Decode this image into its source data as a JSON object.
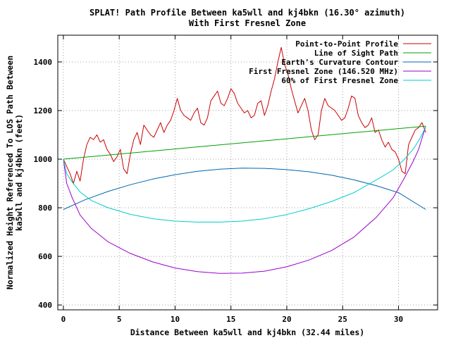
{
  "chart_data": {
    "type": "line",
    "title": "SPLAT! Path Profile Between ka5wll and kj4bkn (16.30° azimuth)",
    "subtitle": "With First Fresnel Zone",
    "xlabel": "Distance Between ka5wll and kj4bkn (32.44 miles)",
    "ylabel_line1": "Normalized Height Referenced To LOS Path Between",
    "ylabel_line2": "ka5wll and kj4bkn (feet)",
    "xlim": [
      -0.5,
      33.5
    ],
    "ylim": [
      380,
      1510
    ],
    "xticks": [
      0,
      5,
      10,
      15,
      20,
      25,
      30
    ],
    "yticks": [
      400,
      600,
      800,
      1000,
      1200,
      1400
    ],
    "grid": true,
    "legend_position": "top-right",
    "series": [
      {
        "name": "Point-to-Point Profile",
        "color": "#cc0000",
        "x": [
          0,
          0.3,
          0.6,
          0.9,
          1.2,
          1.5,
          1.8,
          2.1,
          2.4,
          2.7,
          3.0,
          3.3,
          3.6,
          3.9,
          4.2,
          4.5,
          4.8,
          5.1,
          5.4,
          5.7,
          6.0,
          6.3,
          6.6,
          6.9,
          7.2,
          7.5,
          7.8,
          8.1,
          8.4,
          8.7,
          9.0,
          9.3,
          9.6,
          9.9,
          10.2,
          10.5,
          10.8,
          11.1,
          11.4,
          11.7,
          12.0,
          12.3,
          12.6,
          12.9,
          13.2,
          13.5,
          13.8,
          14.1,
          14.4,
          14.7,
          15.0,
          15.3,
          15.6,
          15.9,
          16.2,
          16.5,
          16.8,
          17.1,
          17.4,
          17.7,
          18.0,
          18.3,
          18.6,
          18.9,
          19.2,
          19.5,
          19.8,
          20.1,
          20.4,
          20.7,
          21.0,
          21.3,
          21.6,
          21.9,
          22.2,
          22.5,
          22.8,
          23.1,
          23.4,
          23.7,
          24.0,
          24.3,
          24.6,
          24.9,
          25.2,
          25.5,
          25.8,
          26.1,
          26.4,
          26.7,
          27.0,
          27.3,
          27.6,
          27.9,
          28.2,
          28.5,
          28.8,
          29.1,
          29.4,
          29.7,
          30.0,
          30.3,
          30.6,
          30.9,
          31.2,
          31.5,
          31.8,
          32.1,
          32.44
        ],
        "values": [
          1000,
          970,
          940,
          900,
          950,
          910,
          1000,
          1060,
          1090,
          1080,
          1100,
          1070,
          1080,
          1040,
          1020,
          990,
          1010,
          1040,
          960,
          940,
          1020,
          1080,
          1110,
          1060,
          1140,
          1120,
          1100,
          1090,
          1120,
          1150,
          1110,
          1140,
          1160,
          1200,
          1250,
          1200,
          1180,
          1170,
          1160,
          1190,
          1210,
          1150,
          1140,
          1170,
          1240,
          1260,
          1280,
          1230,
          1220,
          1250,
          1290,
          1270,
          1230,
          1210,
          1190,
          1200,
          1170,
          1180,
          1230,
          1240,
          1180,
          1220,
          1280,
          1330,
          1400,
          1460,
          1390,
          1350,
          1290,
          1240,
          1190,
          1220,
          1250,
          1200,
          1120,
          1080,
          1100,
          1200,
          1250,
          1220,
          1210,
          1200,
          1180,
          1160,
          1170,
          1210,
          1260,
          1250,
          1180,
          1150,
          1130,
          1140,
          1170,
          1110,
          1120,
          1080,
          1050,
          1070,
          1040,
          1030,
          1000,
          950,
          940,
          1060,
          1090,
          1120,
          1130,
          1150,
          1110
        ]
      },
      {
        "name": "Line of Sight Path",
        "color": "#00a000",
        "x": [
          0,
          32.44
        ],
        "values": [
          1000,
          1136
        ]
      },
      {
        "name": "Earth's Curvature Contour",
        "color": "#0066b0",
        "x": [
          0,
          2,
          4,
          6,
          8,
          10,
          12,
          14,
          16,
          18,
          20,
          22,
          24,
          26,
          28,
          30,
          32.44
        ],
        "values": [
          793,
          834,
          867,
          895,
          918,
          936,
          950,
          959,
          963,
          962,
          957,
          948,
          934,
          915,
          891,
          862,
          793
        ]
      },
      {
        "name": "First Fresnel Zone (146.520 MHz)",
        "color": "#9900cc",
        "x": [
          0,
          0.3,
          0.8,
          1.5,
          2.5,
          4,
          6,
          8,
          10,
          12,
          14,
          16,
          18,
          20,
          22,
          24,
          26,
          28,
          29.5,
          30.5,
          31.3,
          31.8,
          32.2,
          32.44
        ],
        "values": [
          1000,
          900,
          840,
          770,
          715,
          660,
          612,
          577,
          552,
          537,
          530,
          531,
          539,
          557,
          585,
          624,
          679,
          760,
          840,
          920,
          990,
          1040,
          1100,
          1136
        ]
      },
      {
        "name": "60% of First Fresnel Zone",
        "color": "#00cccc",
        "x": [
          0,
          0.3,
          0.8,
          1.5,
          2.5,
          4,
          6,
          8,
          10,
          12,
          14,
          16,
          18,
          20,
          22,
          24,
          26,
          28,
          29.5,
          30.5,
          31.3,
          31.8,
          32.2,
          32.44
        ],
        "values": [
          1000,
          940,
          905,
          865,
          830,
          800,
          773,
          755,
          745,
          741,
          741,
          745,
          755,
          772,
          796,
          826,
          862,
          914,
          955,
          998,
          1040,
          1075,
          1110,
          1136
        ]
      }
    ]
  }
}
